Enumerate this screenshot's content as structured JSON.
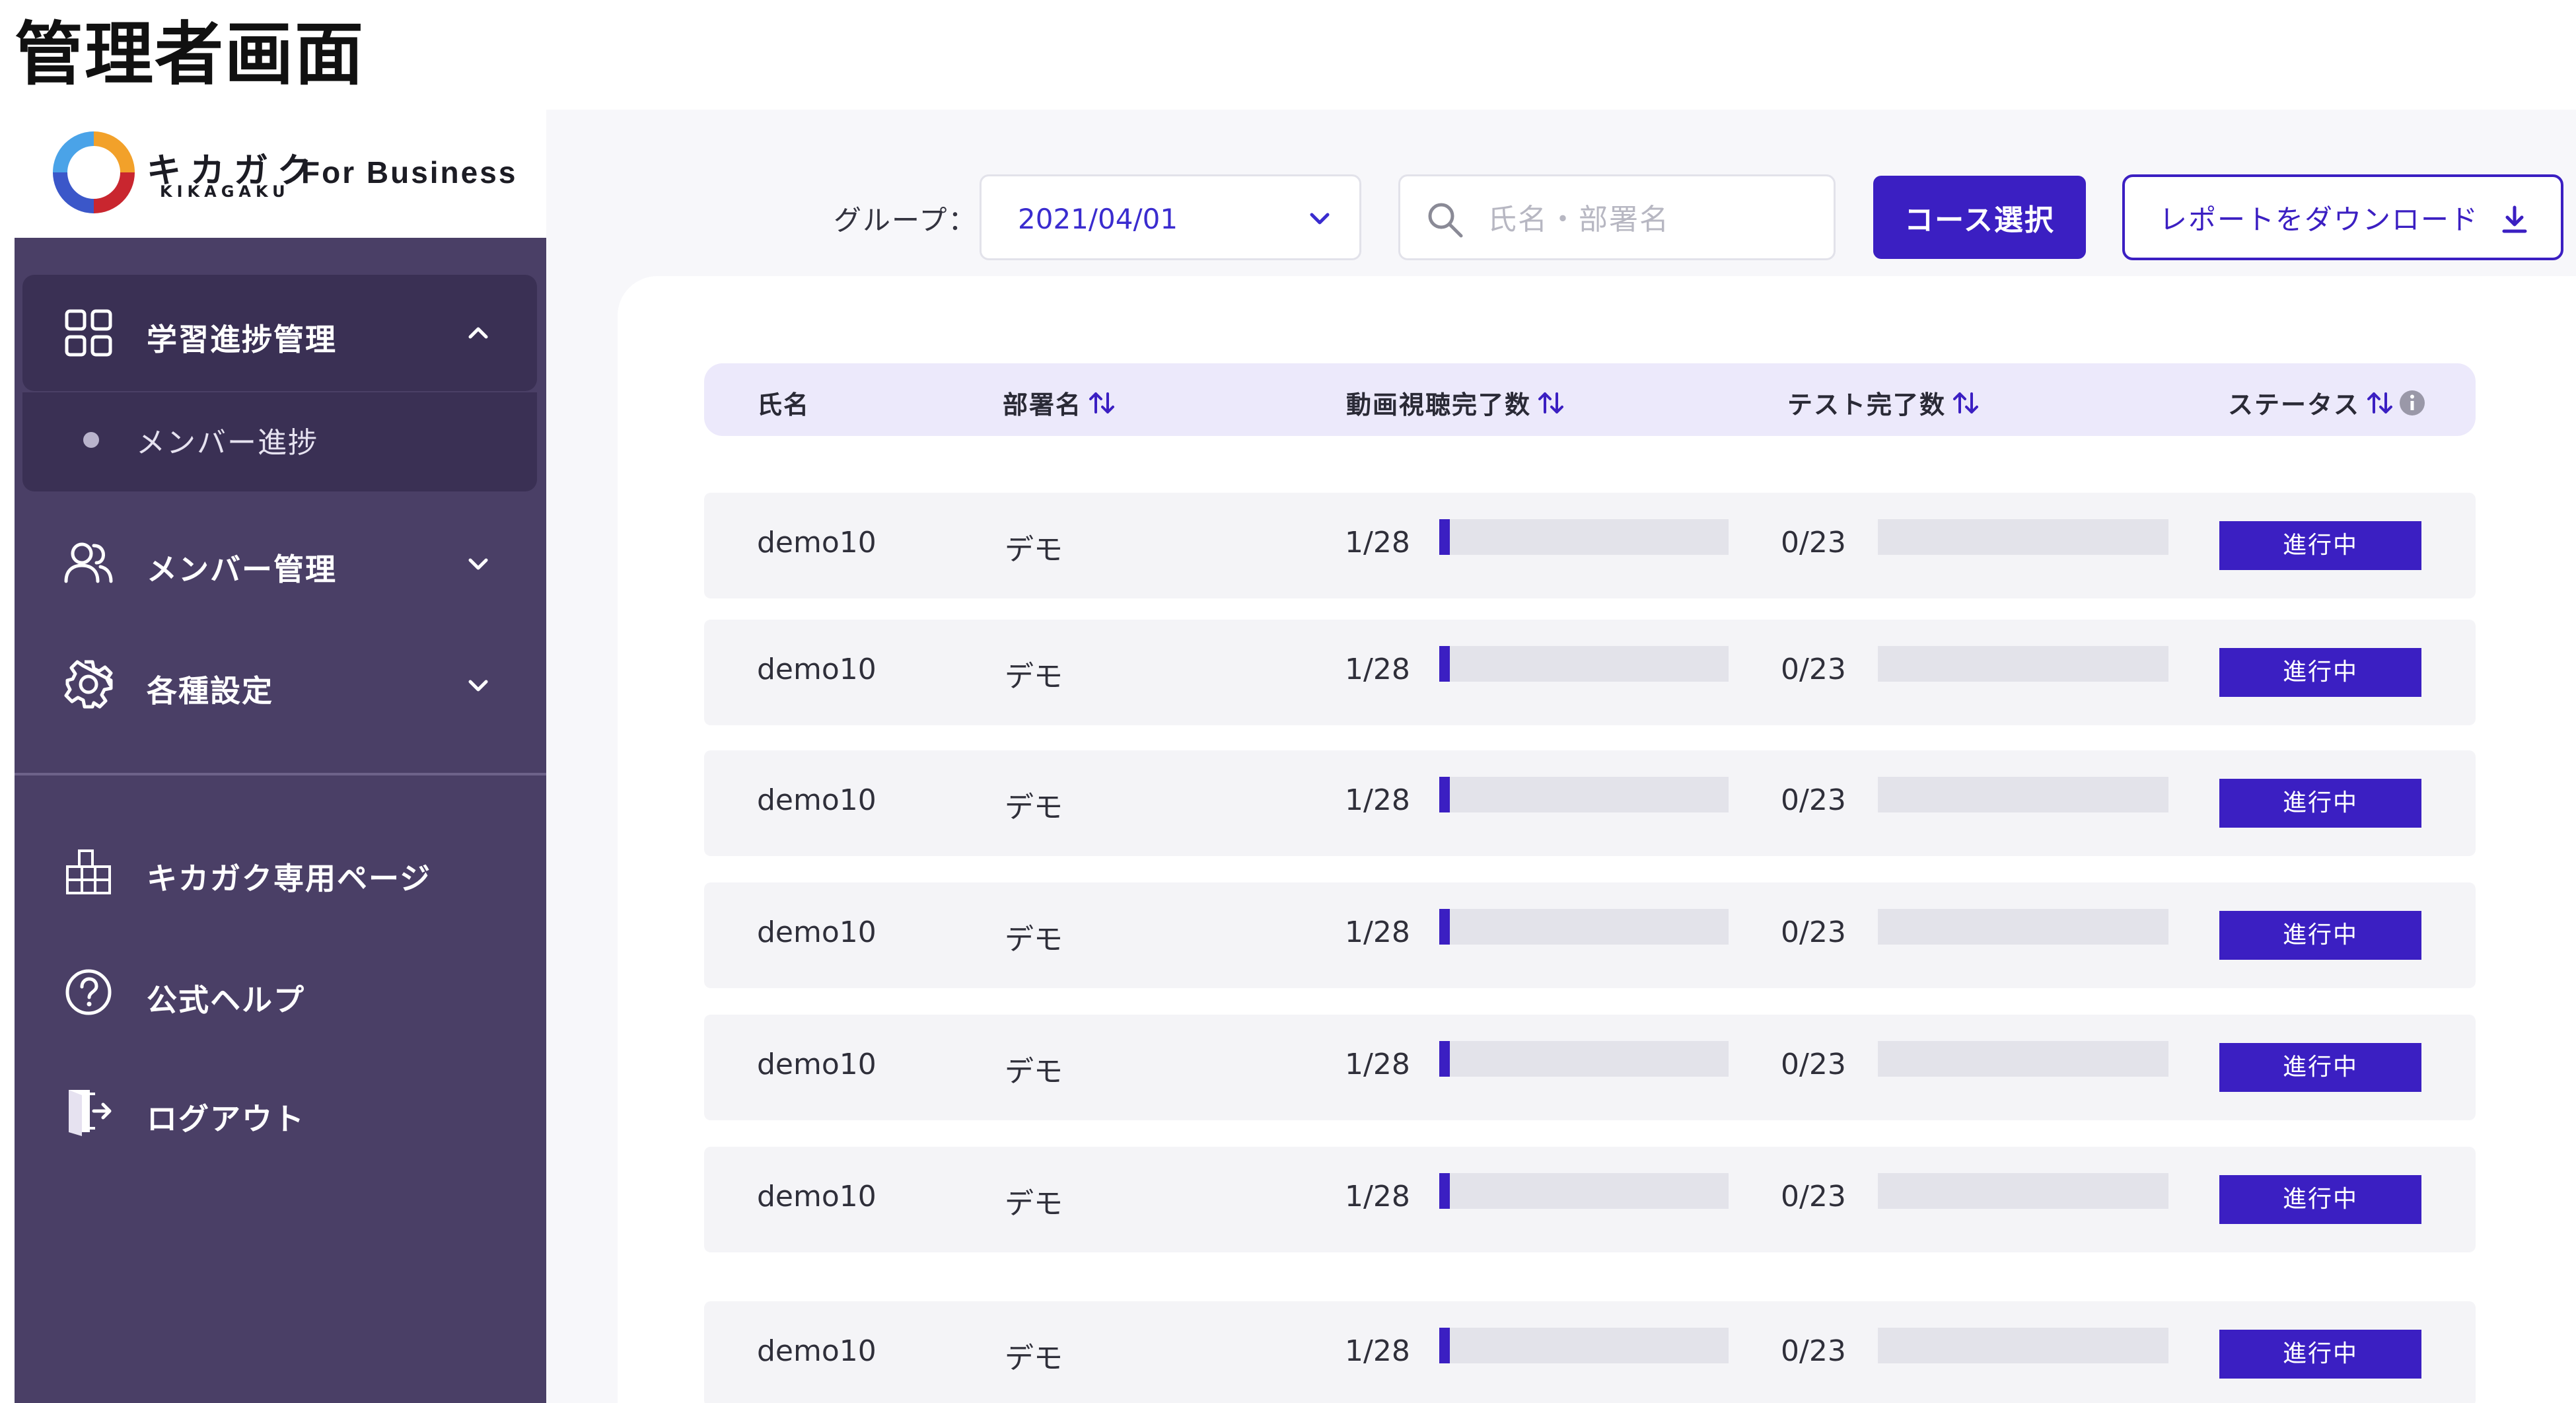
{
  "page_title": "管理者画面",
  "brand": {
    "kana": "キカガク",
    "roman": "KIKAGAKU",
    "suffix": "For Business"
  },
  "sidebar": {
    "groups": [
      {
        "label": "学習進捗管理",
        "icon": "grid-icon",
        "expanded": true,
        "children": [
          {
            "label": "メンバー進捗"
          }
        ]
      },
      {
        "label": "メンバー管理",
        "icon": "users-icon",
        "expanded": false
      },
      {
        "label": "各種設定",
        "icon": "gear-icon",
        "expanded": false
      }
    ],
    "links": [
      {
        "label": "キカガク専用ページ",
        "icon": "building-icon"
      },
      {
        "label": "公式ヘルプ",
        "icon": "help-circle-icon"
      },
      {
        "label": "ログアウト",
        "icon": "logout-door-icon"
      }
    ]
  },
  "toolbar": {
    "group_label": "グループ：",
    "group_value": "2021/04/01",
    "search_placeholder": "氏名・部署名",
    "course_button": "コース選択",
    "report_button": "レポートをダウンロード"
  },
  "table": {
    "headers": {
      "name": "氏名",
      "dept": "部署名",
      "video": "動画視聴完了数",
      "test": "テスト完了数",
      "status": "ステータス"
    },
    "rows": [
      {
        "name": "demo10",
        "dept": "デモ",
        "video": "1/28",
        "video_progress": 0.036,
        "test": "0/23",
        "test_progress": 0,
        "status": "進行中"
      },
      {
        "name": "demo10",
        "dept": "デモ",
        "video": "1/28",
        "video_progress": 0.036,
        "test": "0/23",
        "test_progress": 0,
        "status": "進行中"
      },
      {
        "name": "demo10",
        "dept": "デモ",
        "video": "1/28",
        "video_progress": 0.036,
        "test": "0/23",
        "test_progress": 0,
        "status": "進行中"
      },
      {
        "name": "demo10",
        "dept": "デモ",
        "video": "1/28",
        "video_progress": 0.036,
        "test": "0/23",
        "test_progress": 0,
        "status": "進行中"
      },
      {
        "name": "demo10",
        "dept": "デモ",
        "video": "1/28",
        "video_progress": 0.036,
        "test": "0/23",
        "test_progress": 0,
        "status": "進行中"
      },
      {
        "name": "demo10",
        "dept": "デモ",
        "video": "1/28",
        "video_progress": 0.036,
        "test": "0/23",
        "test_progress": 0,
        "status": "進行中"
      },
      {
        "name": "demo10",
        "dept": "デモ",
        "video": "1/28",
        "video_progress": 0.036,
        "test": "0/23",
        "test_progress": 0,
        "status": "進行中"
      }
    ]
  },
  "colors": {
    "sidebar_bg": "#4a3f66",
    "sidebar_active": "#3a3054",
    "accent": "#3b1fc2",
    "header_bg": "#ece9fb",
    "row_bg": "#f4f4f7"
  }
}
